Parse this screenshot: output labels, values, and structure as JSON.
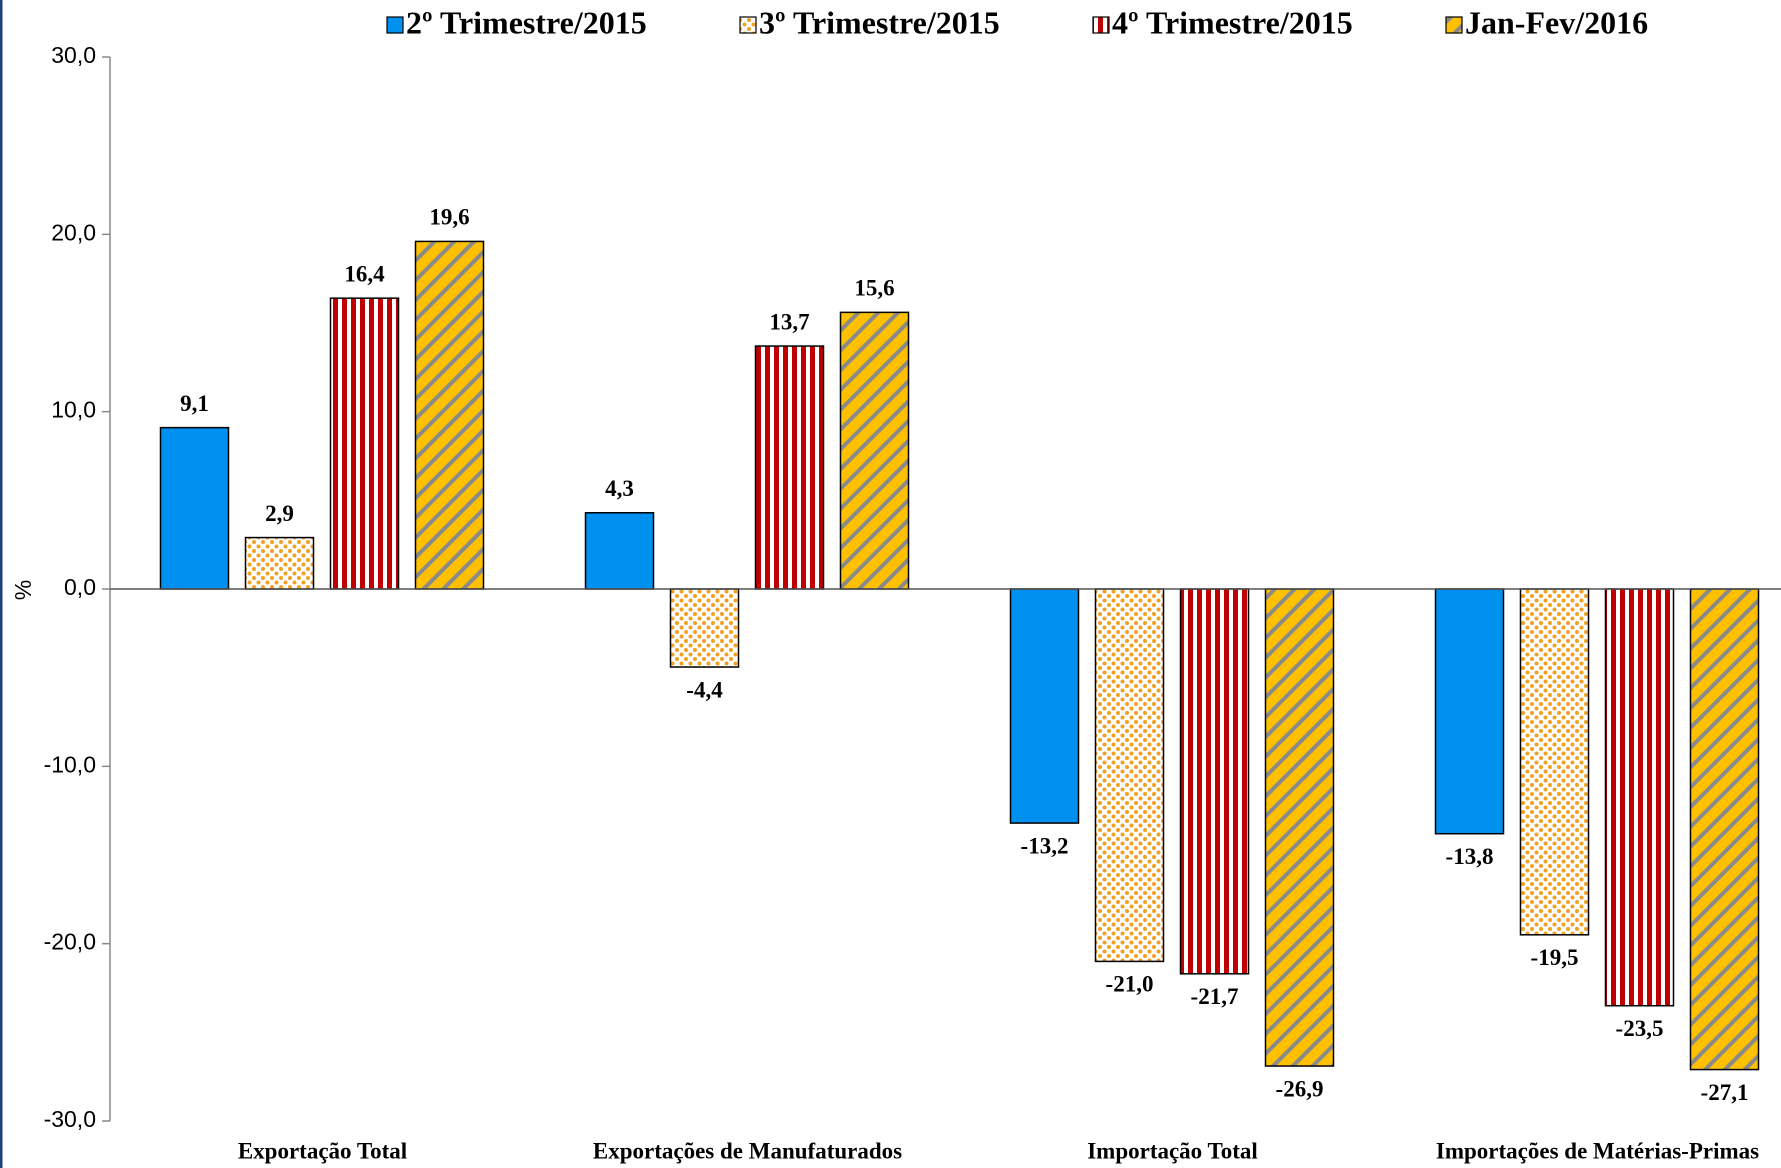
{
  "chart_data": {
    "type": "bar",
    "y_label": "%",
    "categories": [
      "Exportação Total",
      "Exportações de Manufaturados",
      "Importação Total",
      "Importações de Matérias-Primas"
    ],
    "series": [
      {
        "name": "2º Trimestre/2015",
        "color": "#0090f0",
        "pattern": "solid",
        "values": [
          9.1,
          4.3,
          -13.2,
          -13.8
        ],
        "value_labels": [
          "9,1",
          "4,3",
          "-13,2",
          "-13,8"
        ]
      },
      {
        "name": "3º Trimestre/2015",
        "color": "#f4a020",
        "pattern": "dots",
        "values": [
          2.9,
          -4.4,
          -21.0,
          -19.5
        ],
        "value_labels": [
          "2,9",
          "-4,4",
          "-21,0",
          "-19,5"
        ]
      },
      {
        "name": "4º Trimestre/2015",
        "color": "#c00000",
        "pattern": "vstripes",
        "values": [
          16.4,
          13.7,
          -21.7,
          -23.5
        ],
        "value_labels": [
          "16,4",
          "13,7",
          "-21,7",
          "-23,5"
        ]
      },
      {
        "name": "Jan-Fev/2016",
        "color": "#ffc000",
        "pattern": "diagonal",
        "values": [
          19.6,
          15.6,
          -26.9,
          -27.1
        ],
        "value_labels": [
          "19,6",
          "15,6",
          "-26,9",
          "-27,1"
        ]
      }
    ],
    "ylim": [
      -30,
      30
    ],
    "yticks": [
      {
        "value": -30,
        "label": "-30,0"
      },
      {
        "value": -20,
        "label": "-20,0"
      },
      {
        "value": -10,
        "label": "-10,0"
      },
      {
        "value": 0,
        "label": "0,0"
      },
      {
        "value": 10,
        "label": "10,0"
      },
      {
        "value": 20,
        "label": "20,0"
      },
      {
        "value": 30,
        "label": "30,0"
      }
    ],
    "legend": "top"
  }
}
